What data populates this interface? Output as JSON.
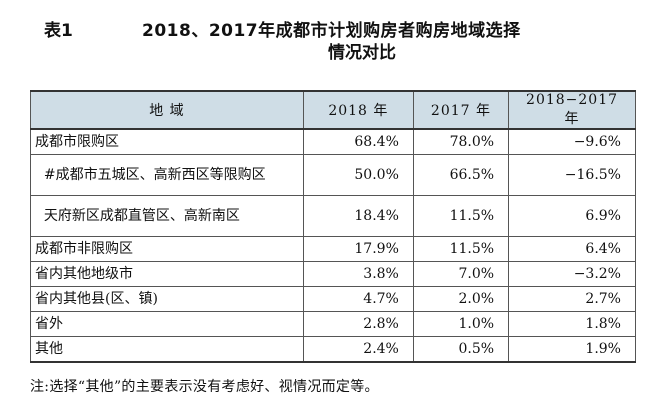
{
  "title": {
    "table_label": "表1",
    "line1": "2018、2017年成都市计划购房者购房地域选择",
    "line2": "情况对比"
  },
  "table": {
    "headers": [
      "地  域",
      "2018 年",
      "2017 年",
      "2018−2017 年"
    ],
    "rows": [
      {
        "region": "成都市限购区",
        "y2018": "68.4%",
        "y2017": "78.0%",
        "diff": "−9.6%"
      },
      {
        "region": "  #成都市五城区、高新西区等限购区",
        "y2018": "50.0%",
        "y2017": "66.5%",
        "diff": "−16.5%"
      },
      {
        "region": "  天府新区成都直管区、高新南区",
        "y2018": "18.4%",
        "y2017": "11.5%",
        "diff": "6.9%"
      },
      {
        "region": "成都市非限购区",
        "y2018": "17.9%",
        "y2017": "11.5%",
        "diff": "6.4%"
      },
      {
        "region": "省内其他地级市",
        "y2018": "3.8%",
        "y2017": "7.0%",
        "diff": "−3.2%"
      },
      {
        "region": "省内其他县(区、镇)",
        "y2018": "4.7%",
        "y2017": "2.0%",
        "diff": "2.7%"
      },
      {
        "region": "省外",
        "y2018": "2.8%",
        "y2017": "1.0%",
        "diff": "1.8%"
      },
      {
        "region": "其他",
        "y2018": "2.4%",
        "y2017": "0.5%",
        "diff": "1.9%"
      }
    ]
  },
  "note": "注:选择“其他”的主要表示没有考虑好、视情况而定等。",
  "colors": {
    "header_bg": "#cfdde6",
    "border": "#555555"
  }
}
